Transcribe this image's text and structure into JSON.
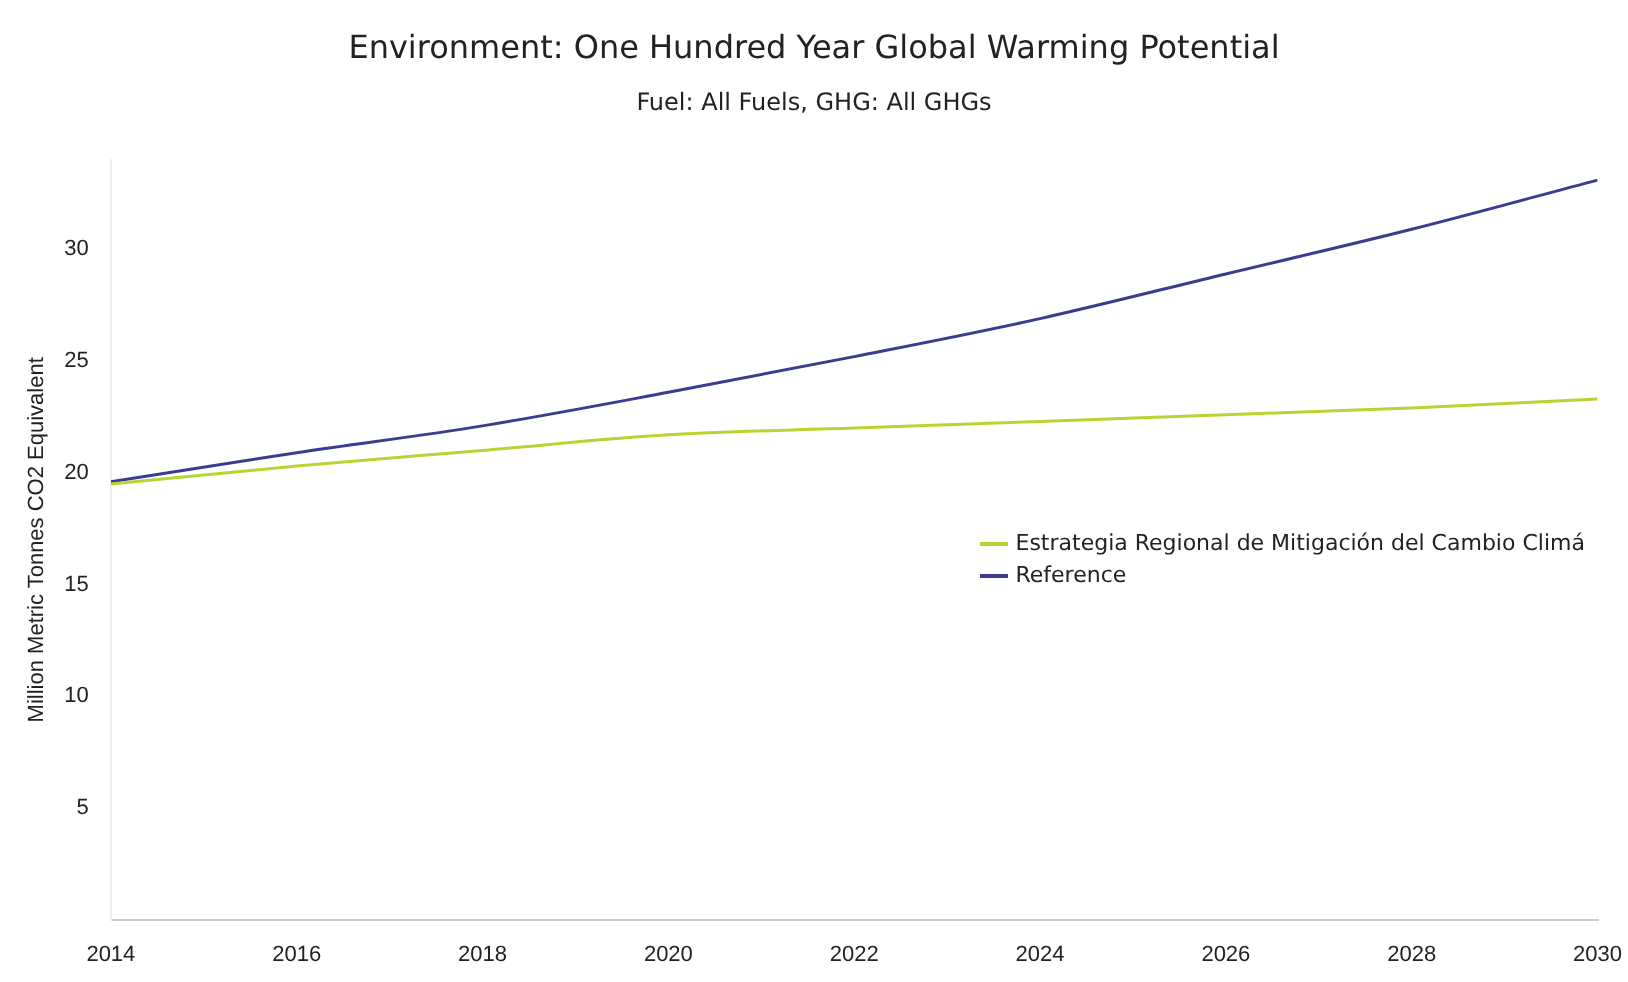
{
  "chart_data": {
    "type": "line",
    "title": "Environment: One Hundred Year Global Warming Potential",
    "subtitle": "Fuel: All Fuels, GHG: All GHGs",
    "ylabel": "Million Metric Tonnes CO2 Equivalent",
    "x": [
      2014,
      2016,
      2018,
      2020,
      2022,
      2024,
      2026,
      2028,
      2030
    ],
    "series": [
      {
        "name": "Estrategia Regional de Mitigación del Cambio Climá",
        "color": "#b8d432",
        "values": [
          19.5,
          20.3,
          21.0,
          21.7,
          22.0,
          22.3,
          22.6,
          22.9,
          23.3
        ]
      },
      {
        "name": "Reference",
        "color": "#3b3b8f",
        "values": [
          19.6,
          20.9,
          22.1,
          23.6,
          25.2,
          26.9,
          28.9,
          30.9,
          33.1
        ]
      }
    ],
    "xlim": [
      2014,
      2030
    ],
    "xticks": [
      2014,
      2016,
      2018,
      2020,
      2022,
      2024,
      2026,
      2028,
      2030
    ],
    "ylim": [
      0,
      34
    ],
    "yticks": [
      5,
      10,
      15,
      20,
      25,
      30
    ],
    "grid": false,
    "legend": "right",
    "marker": "none",
    "line_style": "solid"
  }
}
